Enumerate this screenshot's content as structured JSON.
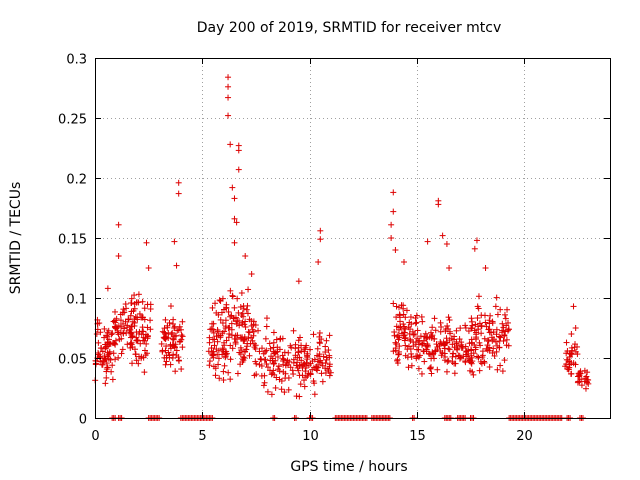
{
  "chart_data": {
    "type": "scatter",
    "title": "Day 200 of 2019, SRMTID for receiver mtcv",
    "xlabel": "GPS time / hours",
    "ylabel": "SRMTID / TECUs",
    "xlim": [
      0,
      24
    ],
    "ylim": [
      0,
      0.3
    ],
    "xticks": [
      0,
      5,
      10,
      15,
      20
    ],
    "xtick_labels": [
      "0",
      "5",
      "10",
      "15",
      "20"
    ],
    "yticks": [
      0,
      0.05,
      0.1,
      0.15,
      0.2,
      0.25,
      0.3
    ],
    "ytick_labels": [
      "0",
      "0.05",
      "0.1",
      "0.15",
      "0.2",
      "0.25",
      "0.3"
    ],
    "grid": true,
    "marker": "+",
    "color": "#dd0000",
    "series": [
      {
        "name": "SRMTID",
        "clusters": [
          {
            "x_range": [
              0.0,
              0.9
            ],
            "y_min": 0.02,
            "y_max": 0.09,
            "count": 70
          },
          {
            "x_range": [
              0.9,
              1.8
            ],
            "y_min": 0.04,
            "y_max": 0.11,
            "count": 65
          },
          {
            "x_range": [
              1.8,
              2.6
            ],
            "y_min": 0.03,
            "y_max": 0.11,
            "count": 60
          },
          {
            "x_range": [
              3.1,
              4.1
            ],
            "y_min": 0.03,
            "y_max": 0.1,
            "count": 70
          },
          {
            "x_range": [
              5.3,
              6.3
            ],
            "y_min": 0.02,
            "y_max": 0.11,
            "count": 80
          },
          {
            "x_range": [
              6.3,
              7.4
            ],
            "y_min": 0.03,
            "y_max": 0.12,
            "count": 80
          },
          {
            "x_range": [
              7.4,
              8.7
            ],
            "y_min": 0.01,
            "y_max": 0.09,
            "count": 70
          },
          {
            "x_range": [
              8.7,
              10.3
            ],
            "y_min": 0.01,
            "y_max": 0.08,
            "count": 90
          },
          {
            "x_range": [
              10.3,
              11.0
            ],
            "y_min": 0.02,
            "y_max": 0.08,
            "count": 40
          },
          {
            "x_range": [
              13.9,
              15.0
            ],
            "y_min": 0.03,
            "y_max": 0.11,
            "count": 80
          },
          {
            "x_range": [
              15.0,
              16.5
            ],
            "y_min": 0.03,
            "y_max": 0.09,
            "count": 90
          },
          {
            "x_range": [
              16.5,
              17.6
            ],
            "y_min": 0.03,
            "y_max": 0.09,
            "count": 70
          },
          {
            "x_range": [
              17.6,
              19.3
            ],
            "y_min": 0.03,
            "y_max": 0.11,
            "count": 100
          },
          {
            "x_range": [
              21.9,
              22.5
            ],
            "y_min": 0.03,
            "y_max": 0.07,
            "count": 30
          },
          {
            "x_range": [
              22.5,
              23.0
            ],
            "y_min": 0.02,
            "y_max": 0.05,
            "count": 25
          }
        ],
        "points": [
          [
            0.6,
            0.108
          ],
          [
            1.1,
            0.161
          ],
          [
            1.1,
            0.135
          ],
          [
            2.4,
            0.146
          ],
          [
            2.5,
            0.125
          ],
          [
            3.7,
            0.147
          ],
          [
            3.9,
            0.196
          ],
          [
            3.9,
            0.187
          ],
          [
            3.8,
            0.127
          ],
          [
            6.2,
            0.284
          ],
          [
            6.2,
            0.276
          ],
          [
            6.2,
            0.267
          ],
          [
            6.2,
            0.252
          ],
          [
            6.3,
            0.228
          ],
          [
            6.7,
            0.227
          ],
          [
            6.7,
            0.223
          ],
          [
            6.7,
            0.207
          ],
          [
            6.5,
            0.183
          ],
          [
            6.5,
            0.166
          ],
          [
            6.4,
            0.192
          ],
          [
            6.6,
            0.163
          ],
          [
            6.5,
            0.146
          ],
          [
            7.0,
            0.135
          ],
          [
            7.3,
            0.12
          ],
          [
            9.5,
            0.114
          ],
          [
            10.5,
            0.156
          ],
          [
            10.5,
            0.149
          ],
          [
            10.4,
            0.13
          ],
          [
            13.9,
            0.188
          ],
          [
            13.9,
            0.172
          ],
          [
            13.8,
            0.161
          ],
          [
            13.8,
            0.15
          ],
          [
            14.0,
            0.14
          ],
          [
            14.4,
            0.13
          ],
          [
            15.5,
            0.147
          ],
          [
            16.0,
            0.181
          ],
          [
            16.0,
            0.178
          ],
          [
            16.2,
            0.152
          ],
          [
            16.4,
            0.145
          ],
          [
            16.5,
            0.125
          ],
          [
            17.8,
            0.148
          ],
          [
            17.7,
            0.141
          ],
          [
            18.2,
            0.125
          ],
          [
            22.3,
            0.093
          ],
          [
            22.4,
            0.075
          ],
          [
            22.2,
            0.07
          ]
        ],
        "zero_line_segments": [
          [
            0.8,
            1.0
          ],
          [
            1.1,
            1.3
          ],
          [
            2.5,
            3.0
          ],
          [
            4.0,
            5.5
          ],
          [
            8.3,
            8.4
          ],
          [
            9.3,
            9.4
          ],
          [
            10.0,
            10.2
          ],
          [
            11.2,
            12.7
          ],
          [
            12.9,
            13.8
          ],
          [
            14.8,
            14.9
          ],
          [
            16.3,
            16.6
          ],
          [
            16.9,
            17.3
          ],
          [
            17.5,
            17.7
          ],
          [
            19.3,
            21.8
          ],
          [
            22.0,
            22.2
          ],
          [
            22.6,
            22.8
          ]
        ]
      }
    ]
  }
}
